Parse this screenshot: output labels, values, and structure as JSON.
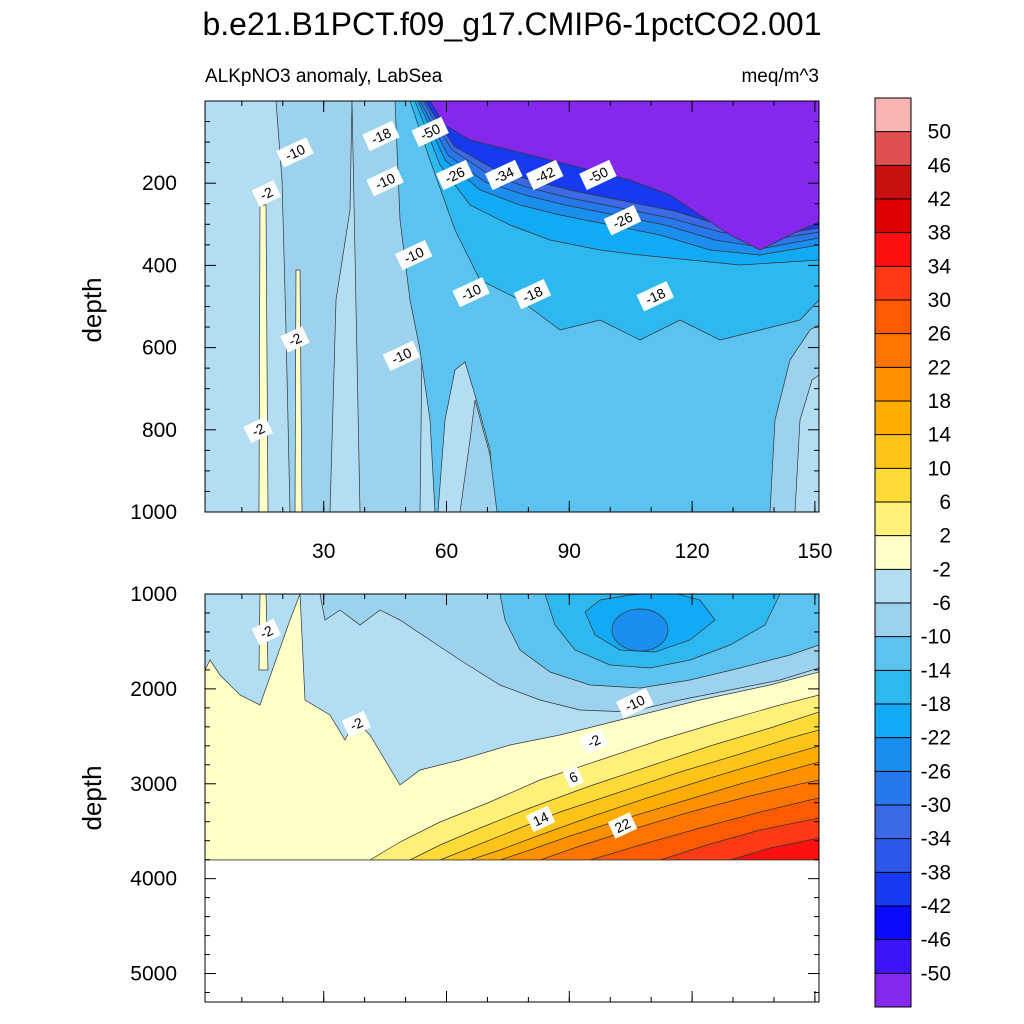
{
  "title": "b.e21.B1PCT.f09_g17.CMIP6-1pctCO2.001",
  "chart_data": [
    {
      "type": "contour",
      "panel": "upper",
      "left_label": "ALKpNO3 anomaly, LabSea",
      "right_label": "meq/m^3",
      "ylabel": "depth",
      "ylim": [
        1000,
        0
      ],
      "xlim": [
        1,
        151
      ],
      "x_ticks": [
        30,
        60,
        90,
        120,
        150
      ],
      "y_ticks": [
        200,
        400,
        600,
        800,
        1000
      ],
      "contour_labels": [
        {
          "text": "-10",
          "x": 23,
          "y": 125
        },
        {
          "text": "-18",
          "x": 44,
          "y": 85
        },
        {
          "text": "-50",
          "x": 56,
          "y": 75
        },
        {
          "text": "-2",
          "x": 16,
          "y": 225
        },
        {
          "text": "-10",
          "x": 45,
          "y": 195
        },
        {
          "text": "-26",
          "x": 62,
          "y": 180
        },
        {
          "text": "-34",
          "x": 74,
          "y": 180
        },
        {
          "text": "-42",
          "x": 84,
          "y": 180
        },
        {
          "text": "-50",
          "x": 97,
          "y": 180
        },
        {
          "text": "-26",
          "x": 103,
          "y": 290
        },
        {
          "text": "-10",
          "x": 52,
          "y": 375
        },
        {
          "text": "-10",
          "x": 66,
          "y": 465
        },
        {
          "text": "-18",
          "x": 81,
          "y": 470
        },
        {
          "text": "-18",
          "x": 111,
          "y": 475
        },
        {
          "text": "-2",
          "x": 23,
          "y": 580
        },
        {
          "text": "-10",
          "x": 49,
          "y": 620
        },
        {
          "text": "-2",
          "x": 14,
          "y": 800
        }
      ]
    },
    {
      "type": "contour",
      "panel": "lower",
      "ylabel": "depth",
      "ylim": [
        5300,
        1000
      ],
      "xlim": [
        1,
        151
      ],
      "y_ticks": [
        1000,
        2000,
        3000,
        4000,
        5000
      ],
      "contour_labels": [
        {
          "text": "-2",
          "x": 16,
          "y": 1400
        },
        {
          "text": "-10",
          "x": 106,
          "y": 2150
        },
        {
          "text": "-2",
          "x": 38,
          "y": 2370
        },
        {
          "text": "-2",
          "x": 96,
          "y": 2550
        },
        {
          "text": "6",
          "x": 91,
          "y": 2930
        },
        {
          "text": "14",
          "x": 83,
          "y": 3370
        },
        {
          "text": "22",
          "x": 103,
          "y": 3440
        }
      ]
    }
  ],
  "colorbar": {
    "labels": [
      "50",
      "46",
      "42",
      "38",
      "34",
      "30",
      "26",
      "22",
      "18",
      "14",
      "10",
      "6",
      "2",
      "-2",
      "-6",
      "-10",
      "-14",
      "-18",
      "-22",
      "-26",
      "-30",
      "-34",
      "-38",
      "-42",
      "-46",
      "-50"
    ],
    "colors": [
      "#f9b3b3",
      "#e05050",
      "#c81010",
      "#dc0000",
      "#ff1010",
      "#ff3a14",
      "#ff5a00",
      "#ff7500",
      "#ff9100",
      "#ffad00",
      "#ffc41a",
      "#ffdb37",
      "#fff07a",
      "#ffffc8",
      "#b3ddf2",
      "#9dd2ee",
      "#5cc2ef",
      "#2db9f0",
      "#12aaf5",
      "#1a8ff0",
      "#2678ec",
      "#3a6ae6",
      "#2c57e8",
      "#1739f0",
      "#0a0aff",
      "#4014fa",
      "#8428ee"
    ]
  },
  "colors": {
    "missing": "#8428ee",
    "line": "#222222"
  }
}
